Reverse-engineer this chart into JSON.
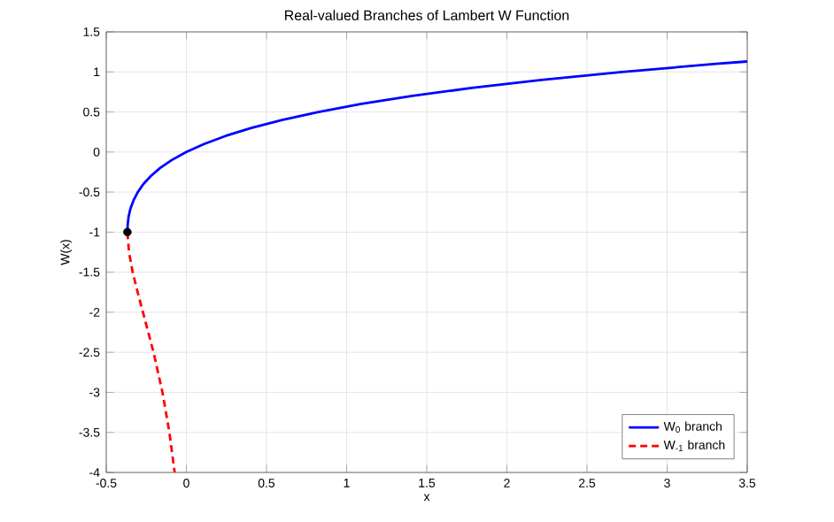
{
  "chart_data": {
    "type": "line",
    "title": "Real-valued Branches of Lambert W Function",
    "xlabel": "x",
    "ylabel": "W(x)",
    "xlim": [
      -0.5,
      3.5
    ],
    "ylim": [
      -4,
      1.5
    ],
    "xticks": [
      -0.5,
      0,
      0.5,
      1,
      1.5,
      2,
      2.5,
      3,
      3.5
    ],
    "yticks": [
      -4,
      -3.5,
      -3,
      -2.5,
      -2,
      -1.5,
      -1,
      -0.5,
      0,
      0.5,
      1,
      1.5
    ],
    "grid": true,
    "legend": "bottom right",
    "series": [
      {
        "name": "W$_{0}$ branch",
        "color": "#0000ff",
        "line_style": "solid",
        "marker": "none",
        "x": [
          -0.368,
          -0.366,
          -0.36,
          -0.348,
          -0.329,
          -0.303,
          -0.268,
          -0.222,
          -0.164,
          -0.091,
          0,
          0.111,
          0.244,
          0.405,
          0.597,
          0.824,
          1.093,
          1.41,
          1.78,
          2.214,
          2.718,
          3.305,
          3.5
        ],
        "values": [
          -1,
          -0.9,
          -0.8,
          -0.7,
          -0.6,
          -0.5,
          -0.4,
          -0.3,
          -0.2,
          -0.1,
          0,
          0.1,
          0.2,
          0.3,
          0.4,
          0.5,
          0.6,
          0.7,
          0.8,
          0.9,
          1,
          1.1,
          1.13
        ]
      },
      {
        "name": "W$_{-1}$ branch",
        "color": "#ff0000",
        "line_style": "dashed",
        "marker": "none",
        "x": [
          -0.368,
          -0.358,
          -0.335,
          -0.304,
          -0.271,
          -0.205,
          -0.149,
          -0.106,
          -0.073
        ],
        "values": [
          -1,
          -1.25,
          -1.5,
          -1.75,
          -2,
          -2.5,
          -3,
          -3.5,
          -4
        ]
      },
      {
        "type": "scatter",
        "color": "#000000",
        "marker": "circle",
        "x": [
          -0.368
        ],
        "values": [
          -1
        ]
      }
    ]
  }
}
